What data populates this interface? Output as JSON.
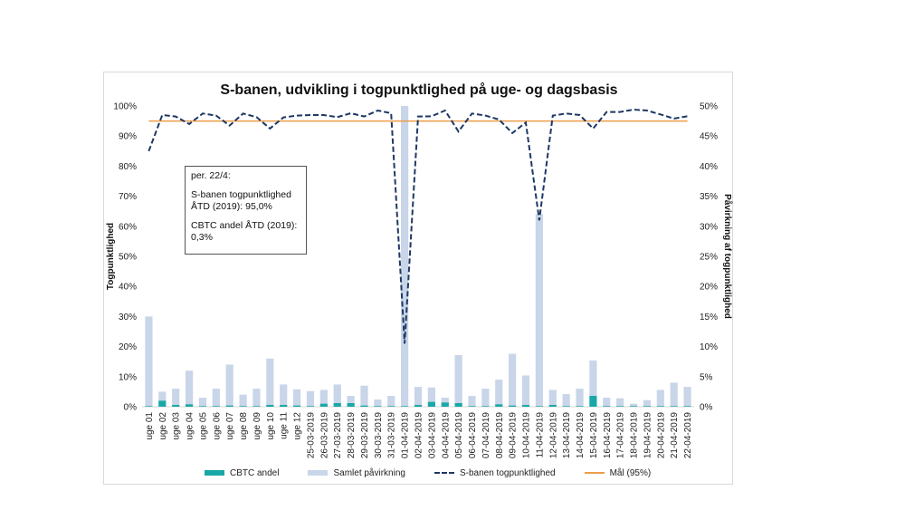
{
  "chart_data": {
    "type": "bar+line",
    "title": "S-banen, udvikling i togpunktlighed på uge- og dagsbasis",
    "ylabel_left": "Togpunktlighed",
    "ylabel_right": "Påvirkning af togpunktlighed",
    "ylim_left": [
      0,
      100
    ],
    "ylim_right": [
      0,
      50
    ],
    "yticks_left": [
      "0%",
      "10%",
      "20%",
      "30%",
      "40%",
      "50%",
      "60%",
      "70%",
      "80%",
      "90%",
      "100%"
    ],
    "yticks_right": [
      "0%",
      "5%",
      "10%",
      "15%",
      "20%",
      "25%",
      "30%",
      "35%",
      "40%",
      "45%",
      "50%"
    ],
    "categories": [
      "uge 01",
      "uge 02",
      "uge 03",
      "uge 04",
      "uge 05",
      "uge 06",
      "uge 07",
      "uge 08",
      "uge 09",
      "uge 10",
      "uge 11",
      "uge 12",
      "25-03-2019",
      "26-03-2019",
      "27-03-2019",
      "28-03-2019",
      "29-03-2019",
      "30-03-2019",
      "31-03-2019",
      "01-04-2019",
      "02-04-2019",
      "03-04-2019",
      "04-04-2019",
      "05-04-2019",
      "06-04-2019",
      "07-04-2019",
      "08-04-2019",
      "09-04-2019",
      "10-04-2019",
      "11-04-2019",
      "12-04-2019",
      "13-04-2019",
      "14-04-2019",
      "15-04-2019",
      "16-04-2019",
      "17-04-2019",
      "18-04-2019",
      "19-04-2019",
      "20-04-2019",
      "21-04-2019",
      "22-04-2019"
    ],
    "series": [
      {
        "name": "CBTC andel",
        "axis": "right",
        "kind": "bar",
        "color": "#1aa7a7",
        "values": [
          0.1,
          1,
          0.3,
          0.4,
          0.1,
          0.1,
          0.2,
          0.1,
          0.1,
          0.3,
          0.3,
          0.2,
          0.1,
          0.5,
          0.6,
          0.6,
          0.2,
          0.1,
          0.1,
          0.1,
          0.3,
          0.8,
          0.7,
          0.6,
          0.1,
          0.1,
          0.4,
          0.2,
          0.3,
          0.1,
          0.3,
          0.1,
          0.1,
          1.8,
          0.1,
          0.1,
          0.1,
          0.1,
          0.1,
          0.1,
          0.1
        ]
      },
      {
        "name": "Samlet påvirkning",
        "axis": "right",
        "kind": "bar",
        "color": "#c9d5e8",
        "values": [
          15,
          2.5,
          3,
          6,
          1.5,
          3,
          7,
          2,
          3,
          8,
          3.7,
          2.9,
          2.6,
          2.8,
          3.7,
          1.8,
          3.5,
          1.2,
          1.8,
          50,
          3.3,
          3.2,
          1.5,
          8.6,
          1.8,
          3,
          4.5,
          8.8,
          5.2,
          32,
          2.8,
          2.1,
          3,
          7.7,
          1.5,
          1.4,
          0.5,
          1.1,
          2.8,
          4,
          3.3
        ]
      },
      {
        "name": "S-banen togpunktlighed",
        "axis": "left",
        "kind": "line",
        "color": "#1f3864",
        "values": [
          85,
          97,
          96.5,
          94,
          97.5,
          96.8,
          93.5,
          97.5,
          96.3,
          92.5,
          96.2,
          96.8,
          97,
          97,
          96.3,
          97.6,
          96.5,
          98.5,
          97.6,
          21,
          96.5,
          96.6,
          98.5,
          91.5,
          97.5,
          96.8,
          95.5,
          91,
          94.5,
          62,
          96.8,
          97.5,
          97,
          92.5,
          98,
          98,
          98.8,
          98.5,
          97.2,
          95.8,
          96.6
        ]
      },
      {
        "name": "Mål (95%)",
        "axis": "left",
        "kind": "line",
        "color": "#ed9d48",
        "values": [
          95,
          95,
          95,
          95,
          95,
          95,
          95,
          95,
          95,
          95,
          95,
          95,
          95,
          95,
          95,
          95,
          95,
          95,
          95,
          95,
          95,
          95,
          95,
          95,
          95,
          95,
          95,
          95,
          95,
          95,
          95,
          95,
          95,
          95,
          95,
          95,
          95,
          95,
          95,
          95,
          95
        ]
      }
    ],
    "legend": "bottom"
  },
  "annotation": {
    "line1": "per. 22/4:",
    "line2": "S-banen togpunktlighed ÅTD (2019): 95,0%",
    "line3": "CBTC andel ÅTD (2019): 0,3%"
  }
}
